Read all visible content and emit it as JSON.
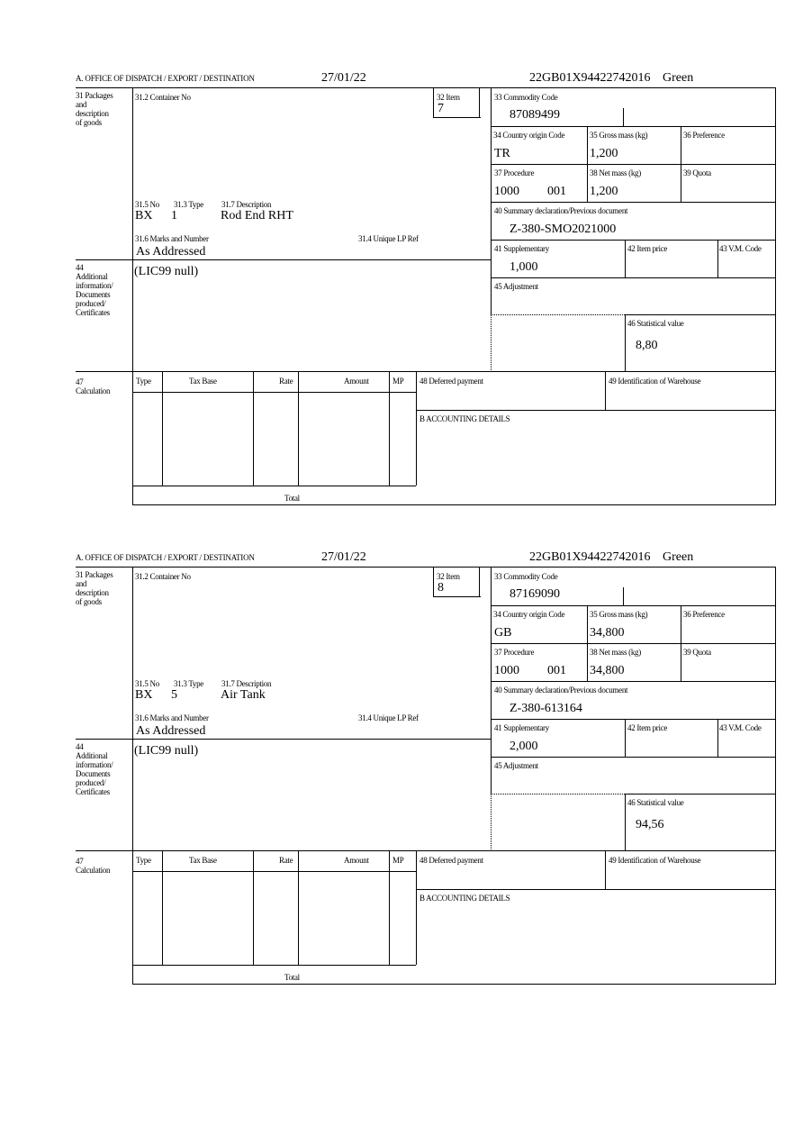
{
  "labels": {
    "office": "A.  OFFICE OF DISPATCH / EXPORT / DESTINATION",
    "packages": "31 Packages\nand\ndescription\nof goods",
    "container": "31.2 Container No",
    "item": "32 Item",
    "commodity": "33 Commodity Code",
    "origin": "34 Country origin Code",
    "gross": "35 Gross mass (kg)",
    "preference": "36 Preference",
    "procedure": "37 Procedure",
    "net": "38 Net mass (kg)",
    "quota": "39 Quota",
    "summary": "40 Summary declaration/Previous document",
    "no": "31.5 No",
    "type": "31.3 Type",
    "desc": "31.7 Description",
    "marks": "31.6 Marks and Number",
    "unique": "31.4 Unique LP Ref",
    "supplementary": "41 Supplementary",
    "item_price": "42 Item price",
    "vm": "43 V.M. Code",
    "additional": "44\nAdditional\ninformation/\nDocuments\nproduced/\nCertificates",
    "adjustment": "45 Adjustment",
    "statistical": "46 Statistical value",
    "calculation": "47\nCalculation",
    "col_type": "Type",
    "col_taxbase": "Tax Base",
    "col_rate": "Rate",
    "col_amount": "Amount",
    "col_mp": "MP",
    "deferred": "48 Deferred payment",
    "warehouse": "49 Identification of Warehouse",
    "accounting": "B ACCOUNTING DETAILS",
    "total": "Total"
  },
  "forms": [
    {
      "date": "27/01/22",
      "reference": "22GB01X94422742016",
      "route": "Green",
      "item": "7",
      "commodity_code": "87089499",
      "origin": "TR",
      "gross_mass": "1,200",
      "procedure": "1000",
      "procedure_add": "001",
      "net_mass": "1,200",
      "summary_doc": "Z-380-SMO2021000",
      "pkg_kind": "BX",
      "pkg_count": "1",
      "description": "Rod End RHT",
      "marks": "As Addressed",
      "supplementary": "1,000",
      "additional_info": "(LIC99 null)",
      "statistical_value": "8,80"
    },
    {
      "date": "27/01/22",
      "reference": "22GB01X94422742016",
      "route": "Green",
      "item": "8",
      "commodity_code": "87169090",
      "origin": "GB",
      "gross_mass": "34,800",
      "procedure": "1000",
      "procedure_add": "001",
      "net_mass": "34,800",
      "summary_doc": "Z-380-613164",
      "pkg_kind": "BX",
      "pkg_count": "5",
      "description": "Air Tank",
      "marks": "As Addressed",
      "supplementary": "2,000",
      "additional_info": "(LIC99 null)",
      "statistical_value": "94,56"
    }
  ]
}
